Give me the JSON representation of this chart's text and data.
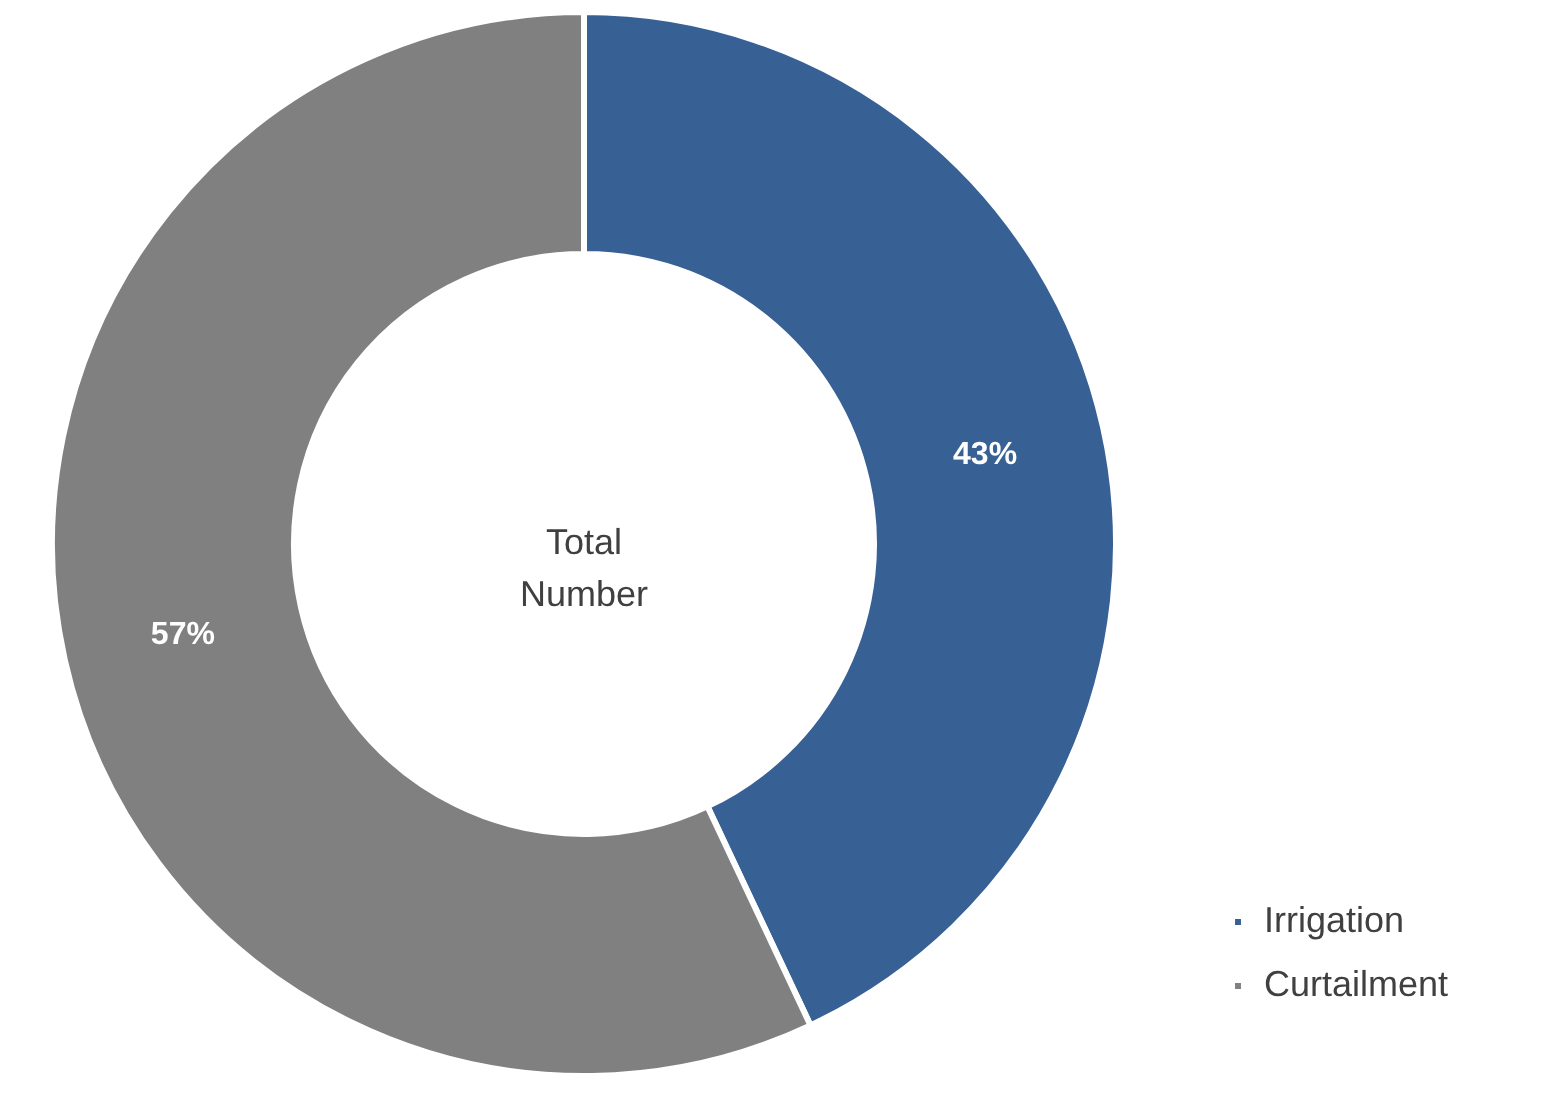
{
  "chart_data": {
    "type": "donut",
    "categories": [
      "Irrigation",
      "Curtailment"
    ],
    "values": [
      43,
      57
    ],
    "colors": [
      "#376095",
      "#808080"
    ],
    "value_labels": [
      "43%",
      "57%"
    ],
    "annotations": [
      "Total Number"
    ],
    "legend": "bottom right"
  }
}
